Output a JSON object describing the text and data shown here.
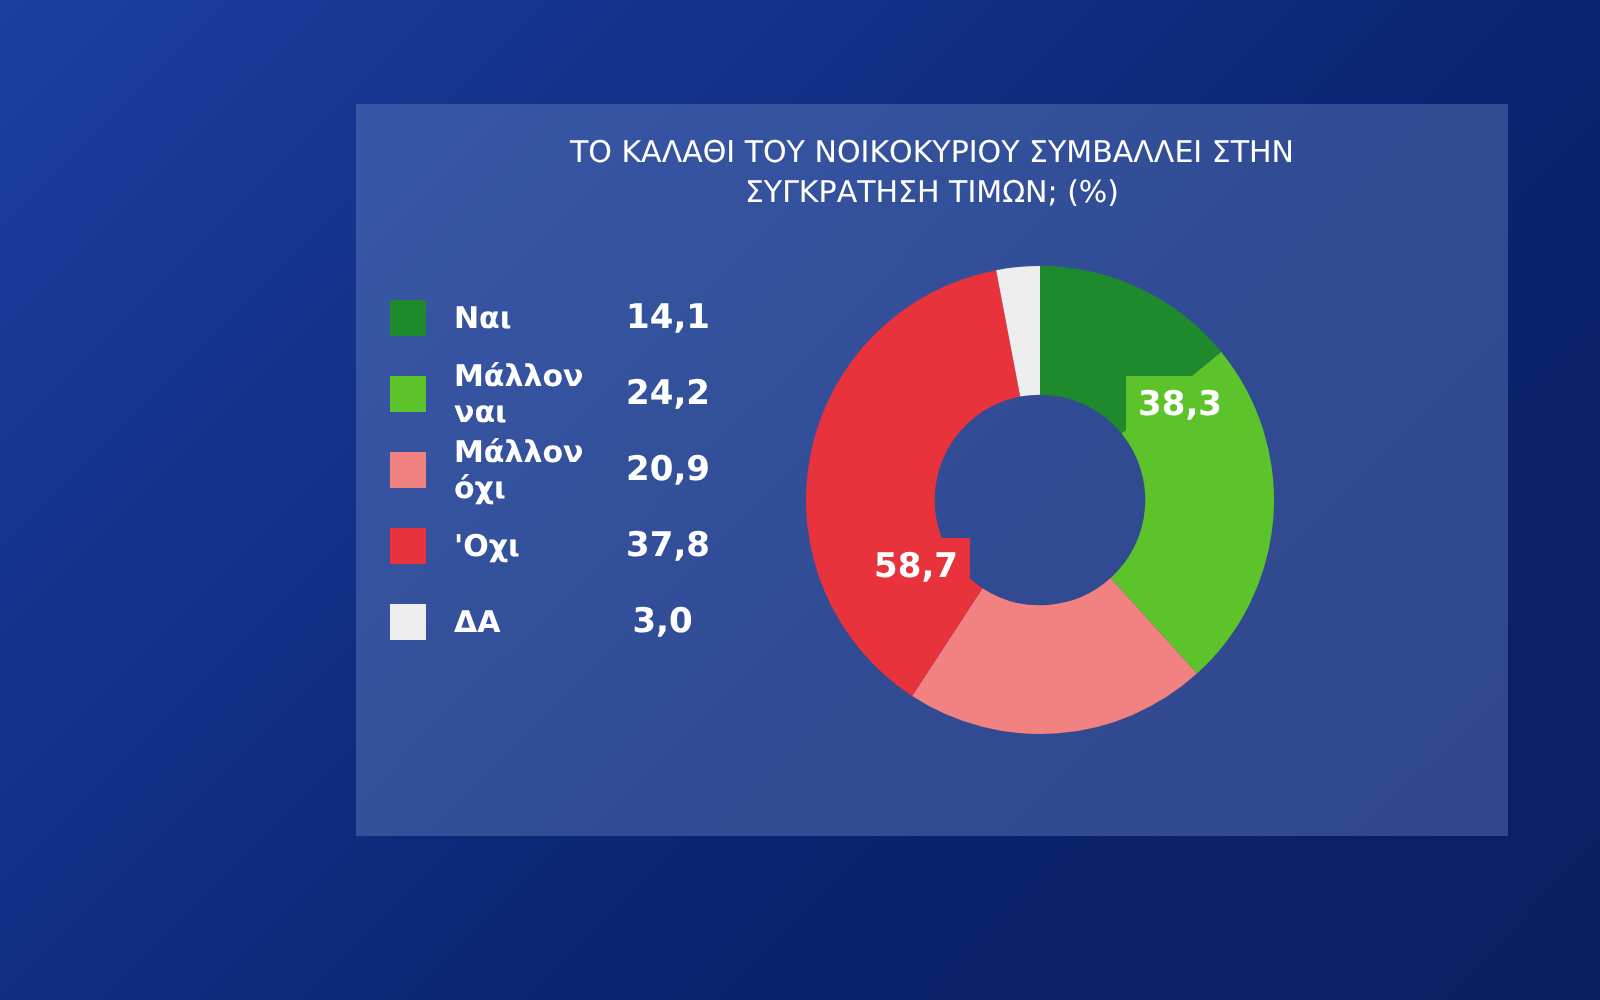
{
  "chart_data": {
    "type": "donut",
    "title": "ΤΟ ΚΑΛΑΘΙ ΤΟΥ ΝΟΙΚΟΚΥΡΙΟΥ ΣΥΜΒΑΛΛΕΙ ΣΤΗΝ ΣΥΓΚΡΑΤΗΣΗ ΤΙΜΩΝ; (%)",
    "categories": [
      "Ναι",
      "Μάλλον ναι",
      "Μάλλον όχι",
      "'Οχι",
      "ΔΑ"
    ],
    "values": [
      14.1,
      24.2,
      20.9,
      37.8,
      3.0
    ],
    "value_labels": [
      "14,1",
      "24,2",
      "20,9",
      "37,8",
      "3,0"
    ],
    "colors": [
      "#1f8a2c",
      "#5cc42a",
      "#f28282",
      "#e8323c",
      "#eeeeee"
    ],
    "annotations": [
      "38,3",
      "58,7"
    ],
    "legend": "left"
  }
}
